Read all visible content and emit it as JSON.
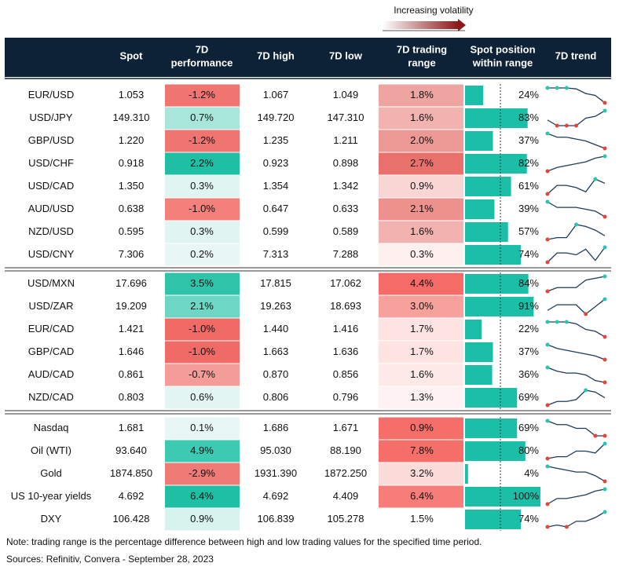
{
  "header": {
    "volatility": "Increasing volatility",
    "columns": [
      [
        "Spot"
      ],
      [
        "7D",
        "performance"
      ],
      [
        "7D high"
      ],
      [
        "7D low"
      ],
      [
        "7D trading",
        "range"
      ],
      [
        "Spot position",
        "within range"
      ],
      [
        "7D trend"
      ]
    ]
  },
  "groups": [
    [
      {
        "name": "EUR/USD",
        "spot": "1.053",
        "perf": "-1.2%",
        "perf_color": "#f07470",
        "high": "1.067",
        "low": "1.049",
        "range": "1.8%",
        "range_color": "#eea5a2",
        "position": {
          "value": 24,
          "label": "24%"
        },
        "trend": [
          9,
          9,
          9,
          8.5,
          6,
          5,
          1
        ]
      },
      {
        "name": "USD/JPY",
        "spot": "149.310",
        "perf": "0.7%",
        "perf_color": "#a8e6dc",
        "high": "149.720",
        "low": "147.310",
        "range": "1.6%",
        "range_color": "#f2b2af",
        "position": {
          "value": 83,
          "label": "83%"
        },
        "trend": [
          4,
          1,
          1,
          1,
          5,
          6,
          9
        ]
      },
      {
        "name": "GBP/USD",
        "spot": "1.220",
        "perf": "-1.2%",
        "perf_color": "#f07470",
        "high": "1.235",
        "low": "1.211",
        "range": "2.0%",
        "range_color": "#ec9894",
        "position": {
          "value": 37,
          "label": "37%"
        },
        "trend": [
          9,
          7,
          7,
          6,
          5,
          3,
          1
        ]
      },
      {
        "name": "USD/CHF",
        "spot": "0.918",
        "perf": "2.2%",
        "perf_color": "#1fbfa5",
        "high": "0.923",
        "low": "0.898",
        "range": "2.7%",
        "range_color": "#e8716c",
        "position": {
          "value": 82,
          "label": "82%"
        },
        "trend": [
          1,
          3,
          4,
          5,
          6,
          8,
          9
        ]
      },
      {
        "name": "USD/CAD",
        "spot": "1.350",
        "perf": "0.3%",
        "perf_color": "#e0f5f2",
        "high": "1.354",
        "low": "1.342",
        "range": "0.9%",
        "range_color": "#f9d6d4",
        "position": {
          "value": 61,
          "label": "61%"
        },
        "trend": [
          2,
          6,
          6,
          5,
          3,
          9,
          7
        ]
      },
      {
        "name": "AUD/USD",
        "spot": "0.638",
        "perf": "-1.0%",
        "perf_color": "#f3807a",
        "high": "0.647",
        "low": "0.633",
        "range": "2.1%",
        "range_color": "#ec918c",
        "position": {
          "value": 39,
          "label": "39%"
        },
        "trend": [
          9,
          6,
          6,
          6,
          5,
          4,
          1
        ]
      },
      {
        "name": "NZD/USD",
        "spot": "0.595",
        "perf": "0.3%",
        "perf_color": "#e0f5f2",
        "high": "0.599",
        "low": "0.589",
        "range": "1.6%",
        "range_color": "#f2b2af",
        "position": {
          "value": 57,
          "label": "57%"
        },
        "trend": [
          1,
          2,
          2,
          9,
          8,
          6,
          3
        ]
      },
      {
        "name": "USD/CNY",
        "spot": "7.306",
        "perf": "0.2%",
        "perf_color": "#e8f7f5",
        "high": "7.313",
        "low": "7.288",
        "range": "0.3%",
        "range_color": "#fdf0ef",
        "position": {
          "value": 74,
          "label": "74%"
        },
        "trend": [
          1,
          6,
          6,
          5,
          8,
          2,
          9
        ]
      }
    ],
    [
      {
        "name": "USD/MXN",
        "spot": "17.696",
        "perf": "3.5%",
        "perf_color": "#2fc3a9",
        "high": "17.815",
        "low": "17.062",
        "range": "4.4%",
        "range_color": "#f46b68",
        "position": {
          "value": 84,
          "label": "84%"
        },
        "trend": [
          1,
          3,
          3,
          3,
          7,
          8,
          9
        ]
      },
      {
        "name": "USD/ZAR",
        "spot": "19.209",
        "perf": "2.1%",
        "perf_color": "#6dd6c4",
        "high": "19.263",
        "low": "18.693",
        "range": "3.0%",
        "range_color": "#f7a19d",
        "position": {
          "value": 91,
          "label": "91%"
        },
        "trend": [
          3,
          6,
          6,
          6,
          1,
          5,
          9
        ]
      },
      {
        "name": "EUR/CAD",
        "spot": "1.421",
        "perf": "-1.0%",
        "perf_color": "#f06a66",
        "high": "1.440",
        "low": "1.416",
        "range": "1.7%",
        "range_color": "#fde4e3",
        "position": {
          "value": 22,
          "label": "22%"
        },
        "trend": [
          9,
          9,
          9,
          8,
          5,
          4,
          1
        ]
      },
      {
        "name": "GBP/CAD",
        "spot": "1.646",
        "perf": "-1.0%",
        "perf_color": "#f06a66",
        "high": "1.663",
        "low": "1.636",
        "range": "1.7%",
        "range_color": "#fde4e3",
        "position": {
          "value": 37,
          "label": "37%"
        },
        "trend": [
          9,
          7,
          6,
          5,
          4,
          3,
          1
        ]
      },
      {
        "name": "AUD/CAD",
        "spot": "0.861",
        "perf": "-0.7%",
        "perf_color": "#f49d98",
        "high": "0.870",
        "low": "0.856",
        "range": "1.6%",
        "range_color": "#fde9e8",
        "position": {
          "value": 36,
          "label": "36%"
        },
        "trend": [
          9,
          7,
          6,
          6,
          5,
          2,
          1
        ]
      },
      {
        "name": "NZD/CAD",
        "spot": "0.803",
        "perf": "0.6%",
        "perf_color": "#e3f6f3",
        "high": "0.806",
        "low": "0.796",
        "range": "1.3%",
        "range_color": "#fef3f2",
        "position": {
          "value": 69,
          "label": "69%"
        },
        "trend": [
          1,
          3,
          3,
          4,
          9,
          8,
          5
        ]
      }
    ],
    [
      {
        "name": "Nasdaq",
        "spot": "1.681",
        "perf": "0.1%",
        "perf_color": "#e8f7f5",
        "high": "1.686",
        "low": "1.671",
        "range": "0.9%",
        "range_color": "#f56e6a",
        "position": {
          "value": 69,
          "label": "69%"
        },
        "trend": [
          9,
          7,
          7,
          5,
          5,
          1,
          1
        ]
      },
      {
        "name": "Oil (WTI)",
        "spot": "93.640",
        "perf": "4.9%",
        "perf_color": "#3ccbb2",
        "high": "95.030",
        "low": "88.190",
        "range": "7.8%",
        "range_color": "#f56e6a",
        "position": {
          "value": 80,
          "label": "80%"
        },
        "trend": [
          1,
          2,
          2,
          5,
          5,
          4,
          9
        ]
      },
      {
        "name": "Gold",
        "spot": "1874.850",
        "perf": "-2.9%",
        "perf_color": "#f07a75",
        "high": "1931.390",
        "low": "1872.250",
        "range": "3.2%",
        "range_color": "#fcdcda",
        "position": {
          "value": 4,
          "label": "4%"
        },
        "trend": [
          9,
          8,
          7,
          6,
          6,
          4,
          1
        ]
      },
      {
        "name": "US 10-year yields",
        "spot": "4.692",
        "perf": "6.4%",
        "perf_color": "#1fbfa5",
        "high": "4.692",
        "low": "4.409",
        "range": "6.4%",
        "range_color": "#f67d79",
        "position": {
          "value": 100,
          "label": "100%"
        },
        "trend": [
          1,
          4,
          4,
          5,
          6,
          8,
          9
        ]
      },
      {
        "name": "DXY",
        "spot": "106.428",
        "perf": "0.9%",
        "perf_color": "#d8f3ee",
        "high": "106.839",
        "low": "105.278",
        "range": "1.5%",
        "range_color": "#ffffff",
        "position": {
          "value": 74,
          "label": "74%"
        },
        "trend": [
          1,
          2,
          1,
          4,
          4,
          6,
          9
        ]
      }
    ]
  ],
  "notes": [
    "Note: trading range is the percentage difference between high and low trading values for the specified time period.",
    "Sources: Refinitiv, Convera - September 28, 2023"
  ]
}
